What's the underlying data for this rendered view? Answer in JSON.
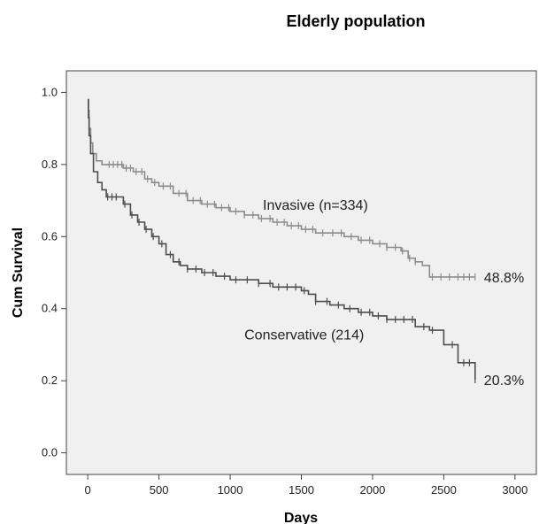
{
  "chart_data": {
    "type": "line",
    "title": "Elderly population",
    "xlabel": "Days",
    "ylabel": "Cum Survival",
    "xlim": [
      -150,
      3150
    ],
    "ylim": [
      -0.06,
      1.06
    ],
    "x_ticks": [
      0,
      500,
      1000,
      1500,
      2000,
      2500,
      3000
    ],
    "y_ticks": [
      0.0,
      0.2,
      0.4,
      0.6,
      0.8,
      1.0
    ],
    "x_tick_labels": [
      "0",
      "500",
      "1000",
      "1500",
      "2000",
      "2500",
      "3000"
    ],
    "y_tick_labels": [
      "0.0",
      "0.2",
      "0.4",
      "0.6",
      "0.8",
      "1.0"
    ],
    "grid": false,
    "background": "#f0f0f0",
    "series": [
      {
        "name": "Invasive (n=334)",
        "color": "#8c8c8c",
        "end_label": "48.8%",
        "x": [
          0,
          5,
          10,
          20,
          35,
          60,
          100,
          150,
          250,
          320,
          400,
          450,
          500,
          600,
          700,
          800,
          900,
          1000,
          1100,
          1200,
          1300,
          1400,
          1500,
          1600,
          1700,
          1800,
          1900,
          2000,
          2100,
          2200,
          2250,
          2300,
          2350,
          2400,
          2720
        ],
        "y": [
          0.98,
          0.95,
          0.9,
          0.86,
          0.83,
          0.81,
          0.8,
          0.8,
          0.79,
          0.78,
          0.76,
          0.75,
          0.74,
          0.72,
          0.7,
          0.69,
          0.68,
          0.67,
          0.66,
          0.65,
          0.64,
          0.63,
          0.62,
          0.61,
          0.61,
          0.6,
          0.59,
          0.58,
          0.57,
          0.56,
          0.54,
          0.53,
          0.52,
          0.488,
          0.488
        ],
        "censor_x": [
          150,
          180,
          210,
          240,
          270,
          300,
          340,
          380,
          420,
          470,
          530,
          580,
          640,
          690,
          740,
          790,
          840,
          890,
          940,
          990,
          1040,
          1100,
          1160,
          1220,
          1280,
          1330,
          1380,
          1430,
          1480,
          1530,
          1580,
          1650,
          1720,
          1780,
          1850,
          1920,
          1980,
          2050,
          2100,
          2160,
          2210,
          2260,
          2300,
          2420,
          2480,
          2540,
          2600,
          2640,
          2680,
          2720
        ]
      },
      {
        "name": "Conservative (214)",
        "color": "#4d4d4d",
        "end_label": "20.3%",
        "x": [
          0,
          5,
          10,
          20,
          40,
          70,
          100,
          130,
          200,
          250,
          300,
          350,
          400,
          450,
          500,
          550,
          600,
          650,
          700,
          800,
          900,
          1000,
          1100,
          1200,
          1300,
          1500,
          1550,
          1600,
          1700,
          1800,
          1900,
          2000,
          2100,
          2200,
          2300,
          2400,
          2500,
          2600,
          2720
        ],
        "y": [
          0.98,
          0.93,
          0.88,
          0.83,
          0.78,
          0.75,
          0.73,
          0.71,
          0.71,
          0.69,
          0.66,
          0.64,
          0.62,
          0.6,
          0.58,
          0.55,
          0.53,
          0.52,
          0.51,
          0.5,
          0.49,
          0.48,
          0.48,
          0.47,
          0.46,
          0.45,
          0.44,
          0.42,
          0.41,
          0.4,
          0.39,
          0.38,
          0.37,
          0.37,
          0.35,
          0.34,
          0.3,
          0.25,
          0.203
        ],
        "censor_x": [
          140,
          170,
          200,
          260,
          310,
          360,
          410,
          460,
          520,
          580,
          640,
          700,
          760,
          820,
          880,
          960,
          1040,
          1120,
          1200,
          1280,
          1340,
          1400,
          1460,
          1520,
          1600,
          1680,
          1760,
          1840,
          1920,
          1980,
          2040,
          2100,
          2160,
          2220,
          2280,
          2360,
          2420,
          2560,
          2640,
          2680,
          2720
        ]
      }
    ],
    "annotations": [
      {
        "text": "Invasive (n=334)",
        "x": 1230,
        "y": 0.675
      },
      {
        "text": "Conservative (214)",
        "x": 1100,
        "y": 0.315
      }
    ]
  }
}
